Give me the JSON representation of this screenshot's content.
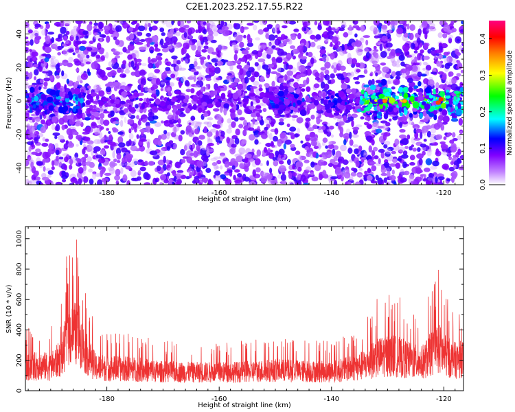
{
  "title": "C2E1.2023.252.17.55.R22",
  "chart_data": [
    {
      "type": "heatmap",
      "xlabel": "Height of straight line (km)",
      "ylabel": "Frequency (Hz)",
      "xlim": [
        -194.5,
        -116.5
      ],
      "ylim": [
        -50,
        48
      ],
      "xticks": [
        -180,
        -160,
        -140,
        -120
      ],
      "yticks": [
        -40,
        -20,
        0,
        20,
        40
      ],
      "colorbar": {
        "label": "Normalized spectral amplitude",
        "range": [
          0.0,
          0.45
        ],
        "ticks": [
          0.0,
          0.1,
          0.2,
          0.3,
          0.4
        ],
        "colormap": [
          "#ffffff",
          "#c080ff",
          "#8000ff",
          "#0000ff",
          "#00ffff",
          "#00ff00",
          "#ffff00",
          "#ff8000",
          "#ff0000",
          "#ff0080"
        ]
      },
      "band_center_freq": 0,
      "strong_segments": [
        {
          "x": [
            -194.5,
            -184
          ],
          "level": 0.13
        },
        {
          "x": [
            -151,
            -145
          ],
          "level": 0.1
        },
        {
          "x": [
            -141,
            -137
          ],
          "level": 0.09
        },
        {
          "x": [
            -135,
            -116.5
          ],
          "level": 0.25
        }
      ],
      "peak_points": [
        {
          "x": -130.5,
          "freq": 0,
          "value": 0.36
        },
        {
          "x": -127,
          "freq": 0,
          "value": 0.34
        },
        {
          "x": -121,
          "freq": -1,
          "value": 0.38
        },
        {
          "x": -120.5,
          "freq": 1,
          "value": 0.39
        }
      ]
    },
    {
      "type": "line",
      "xlabel": "Height of straight line (km)",
      "ylabel": "SNR (10 * v/v)",
      "xlim": [
        -194.5,
        -116.5
      ],
      "ylim": [
        0,
        1080
      ],
      "xticks": [
        -180,
        -160,
        -140,
        -120
      ],
      "yticks": [
        0,
        200,
        400,
        600,
        800,
        1000
      ],
      "color": "#ee3333",
      "envelope": {
        "x": [
          -194.5,
          -192,
          -190,
          -188,
          -187,
          -186,
          -185,
          -184,
          -182,
          -180,
          -175,
          -170,
          -165,
          -160,
          -155,
          -150,
          -145,
          -140,
          -136,
          -134,
          -132,
          -130,
          -128,
          -126,
          -124,
          -122,
          -121,
          -120,
          -118,
          -116.5
        ],
        "min": [
          20,
          20,
          20,
          30,
          50,
          60,
          60,
          40,
          20,
          20,
          20,
          20,
          20,
          20,
          20,
          20,
          20,
          20,
          20,
          20,
          20,
          20,
          20,
          20,
          20,
          20,
          20,
          20,
          20,
          20
        ],
        "max": [
          400,
          450,
          420,
          600,
          950,
          1000,
          1000,
          700,
          420,
          400,
          380,
          330,
          320,
          320,
          330,
          360,
          340,
          330,
          400,
          470,
          600,
          650,
          620,
          550,
          500,
          700,
          820,
          650,
          550,
          580
        ]
      }
    }
  ]
}
